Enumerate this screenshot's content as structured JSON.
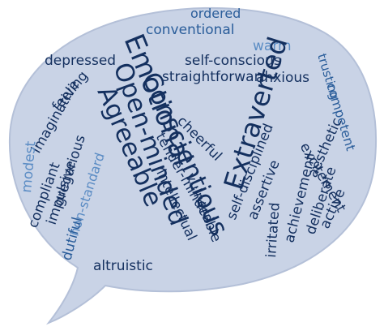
{
  "colors": {
    "bubble_fill": "#c9d3e6",
    "bubble_stroke": "#b4c0d8",
    "navy": "#14305f",
    "blue": "#2a5d9a",
    "light_blue": "#5b8cc4"
  },
  "words": [
    "ordered",
    "conventional",
    "warm",
    "depressed",
    "self-conscious",
    "Emotional",
    "straightforward",
    "Extraverted",
    "trusting",
    "anxious",
    "feeling",
    "Open-minded",
    "imaginative",
    "Conscientious",
    "competent",
    "cheerful",
    "Agreeable",
    "compliant",
    "modest",
    "gregarious",
    "impulsive",
    "non-standard",
    "dutiful",
    "tender-minded",
    "intellectual",
    "vulnerable",
    "self-disciplined",
    "assertive",
    "excitement",
    "aesthetic",
    "achievement",
    "irritated",
    "deliberate",
    "active",
    "altruistic"
  ]
}
